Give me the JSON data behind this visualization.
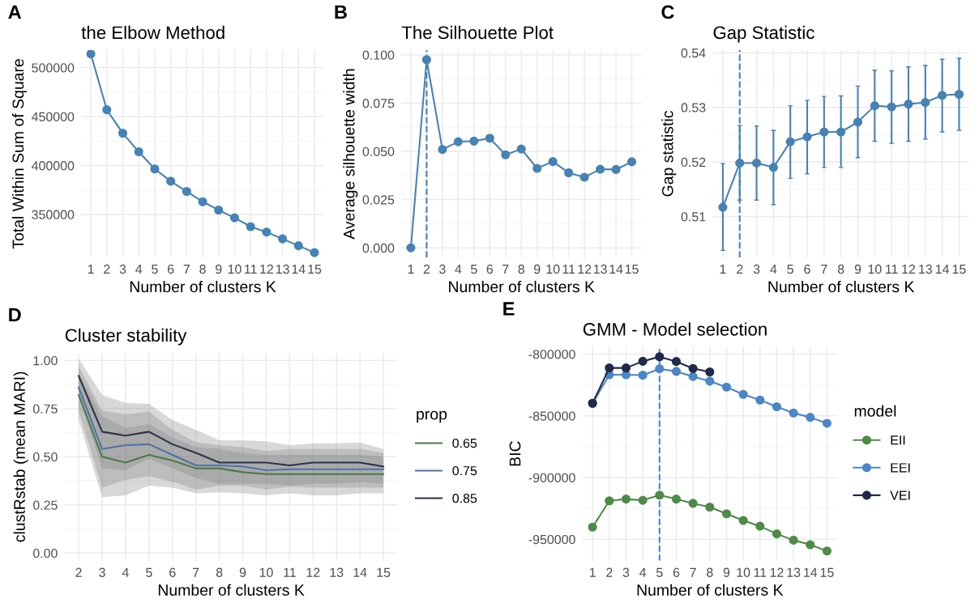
{
  "chart_data": [
    {
      "type": "line",
      "title": "the Elbow Method",
      "xlabel": "Number of clusters K",
      "ylabel": "Total Within Sum of Square",
      "annotations": [
        "A"
      ],
      "categories": [
        "1",
        "2",
        "3",
        "4",
        "5",
        "6",
        "7",
        "8",
        "9",
        "10",
        "11",
        "12",
        "13",
        "14",
        "15"
      ],
      "series": [
        {
          "color": "#4682b4",
          "values": [
            514000,
            457000,
            433000,
            414000,
            396500,
            384000,
            373500,
            363000,
            354500,
            346500,
            337500,
            332000,
            325000,
            318000,
            311000
          ]
        }
      ],
      "ylim": [
        306000,
        518000
      ],
      "yticks": [
        350000,
        400000,
        450000,
        500000
      ],
      "grid": true,
      "marker": "circle",
      "line_style": "solid"
    },
    {
      "type": "line",
      "title": "The Silhouette Plot",
      "xlabel": "Number of clusters K",
      "ylabel": "Average silhouette width",
      "annotations": [
        "B"
      ],
      "categories": [
        "1",
        "2",
        "3",
        "4",
        "5",
        "6",
        "7",
        "8",
        "9",
        "10",
        "11",
        "12",
        "13",
        "14",
        "15"
      ],
      "series": [
        {
          "color": "#4682b4",
          "values": [
            0,
            0.0975,
            0.051,
            0.055,
            0.0553,
            0.0568,
            0.0482,
            0.0512,
            0.0412,
            0.0447,
            0.0389,
            0.0366,
            0.0407,
            0.0406,
            0.0446
          ]
        }
      ],
      "ylim": [
        -0.005,
        0.1025
      ],
      "yticks": [
        {
          "value": 0,
          "label": "0.000"
        },
        {
          "value": 0.025,
          "label": "0.025"
        },
        {
          "value": 0.05,
          "label": "0.050"
        },
        {
          "value": 0.075,
          "label": "0.075"
        },
        {
          "value": 0.1,
          "label": "0.100"
        }
      ],
      "ref_lines": [
        {
          "axis": "x",
          "value": "2",
          "color": "#4682b4",
          "line_style": "dashed"
        }
      ],
      "grid": true,
      "marker": "circle",
      "line_style": "solid"
    },
    {
      "type": "line",
      "title": "Gap Statistic",
      "xlabel": "Number of clusters K",
      "ylabel": "Gap statistic",
      "annotations": [
        "C"
      ],
      "categories": [
        "1",
        "2",
        "3",
        "4",
        "5",
        "6",
        "7",
        "8",
        "9",
        "10",
        "11",
        "12",
        "13",
        "14",
        "15"
      ],
      "series": [
        {
          "color": "#4682b4",
          "values": [
            0.5117,
            0.5198,
            0.5198,
            0.519,
            0.5237,
            0.5246,
            0.5255,
            0.5255,
            0.5273,
            0.5303,
            0.5301,
            0.5306,
            0.5309,
            0.5322,
            0.5324
          ],
          "errors": [
            [
              0.5038,
              0.5197
            ],
            [
              0.513,
              0.5267
            ],
            [
              0.513,
              0.5266
            ],
            [
              0.5122,
              0.5258
            ],
            [
              0.517,
              0.5303
            ],
            [
              0.5178,
              0.5313
            ],
            [
              0.519,
              0.532
            ],
            [
              0.519,
              0.5321
            ],
            [
              0.5208,
              0.5339
            ],
            [
              0.5238,
              0.5368
            ],
            [
              0.5234,
              0.5367
            ],
            [
              0.5238,
              0.5374
            ],
            [
              0.5242,
              0.5377
            ],
            [
              0.5255,
              0.5388
            ],
            [
              0.5258,
              0.539
            ]
          ]
        }
      ],
      "ylim": [
        0.5025,
        0.5405
      ],
      "yticks": [
        0.51,
        0.52,
        0.53,
        0.54
      ],
      "ref_lines": [
        {
          "axis": "x",
          "value": "2",
          "color": "#4682b4",
          "line_style": "dashed"
        }
      ],
      "grid": true,
      "marker": "circle",
      "line_style": "solid"
    },
    {
      "type": "line",
      "title": "Cluster stability",
      "xlabel": "Number of clusters K",
      "ylabel": "clustRstab (mean MARI)",
      "annotations": [
        "D"
      ],
      "legend_title": "prop",
      "categories": [
        "2",
        "3",
        "4",
        "5",
        "6",
        "7",
        "8",
        "9",
        "10",
        "11",
        "12",
        "13",
        "14",
        "15"
      ],
      "series": [
        {
          "name": "0.65",
          "color": "#4a7a47",
          "values": [
            0.82,
            0.5,
            0.47,
            0.51,
            0.48,
            0.44,
            0.44,
            0.42,
            0.41,
            0.41,
            0.41,
            0.41,
            0.41,
            0.41
          ],
          "lower": [
            0.69,
            0.29,
            0.3,
            0.35,
            0.34,
            0.31,
            0.315,
            0.31,
            0.3,
            0.31,
            0.3,
            0.3,
            0.31,
            0.31
          ],
          "upper": [
            0.93,
            0.71,
            0.65,
            0.67,
            0.6,
            0.55,
            0.54,
            0.52,
            0.51,
            0.51,
            0.51,
            0.51,
            0.51,
            0.5
          ]
        },
        {
          "name": "0.75",
          "color": "#4a74a8",
          "values": [
            0.86,
            0.54,
            0.56,
            0.565,
            0.51,
            0.455,
            0.455,
            0.45,
            0.43,
            0.435,
            0.435,
            0.435,
            0.435,
            0.435
          ],
          "lower": [
            0.74,
            0.34,
            0.38,
            0.4,
            0.37,
            0.33,
            0.35,
            0.35,
            0.33,
            0.345,
            0.34,
            0.34,
            0.34,
            0.34
          ],
          "upper": [
            0.97,
            0.74,
            0.72,
            0.735,
            0.64,
            0.575,
            0.56,
            0.55,
            0.53,
            0.54,
            0.54,
            0.54,
            0.54,
            0.52
          ]
        },
        {
          "name": "0.85",
          "color": "#2b3249",
          "values": [
            0.92,
            0.63,
            0.61,
            0.63,
            0.565,
            0.52,
            0.47,
            0.47,
            0.47,
            0.455,
            0.47,
            0.47,
            0.47,
            0.45
          ],
          "lower": [
            0.82,
            0.44,
            0.43,
            0.49,
            0.44,
            0.39,
            0.36,
            0.36,
            0.36,
            0.35,
            0.36,
            0.36,
            0.37,
            0.36
          ],
          "upper": [
            1.01,
            0.82,
            0.78,
            0.775,
            0.69,
            0.64,
            0.585,
            0.585,
            0.58,
            0.56,
            0.57,
            0.57,
            0.575,
            0.54
          ]
        }
      ],
      "ylim": [
        -0.04,
        1.04
      ],
      "yticks": [
        {
          "value": 0,
          "label": "0.00"
        },
        {
          "value": 0.25,
          "label": "0.25"
        },
        {
          "value": 0.5,
          "label": "0.50"
        },
        {
          "value": 0.75,
          "label": "0.75"
        },
        {
          "value": 1,
          "label": "1.00"
        }
      ],
      "grid": true,
      "legend": "right",
      "marker": "none",
      "line_style": "solid"
    },
    {
      "type": "line",
      "title": "GMM - Model selection",
      "xlabel": "Number of clusters K",
      "ylabel": "BIC",
      "annotations": [
        "E"
      ],
      "legend_title": "model",
      "categories": [
        "1",
        "2",
        "3",
        "4",
        "5",
        "6",
        "7",
        "8",
        "9",
        "10",
        "11",
        "12",
        "13",
        "14",
        "15"
      ],
      "series": [
        {
          "name": "EII",
          "color": "#4e8a48",
          "values": [
            -940100,
            -918800,
            -917400,
            -918400,
            -914200,
            -917400,
            -920900,
            -923900,
            -929300,
            -934700,
            -939400,
            -945600,
            -950700,
            -954400,
            -959500
          ]
        },
        {
          "name": "EEI",
          "color": "#4a86c8",
          "values": [
            -839800,
            -816700,
            -816700,
            -817000,
            -811900,
            -814000,
            -818100,
            -821900,
            -826700,
            -832600,
            -837200,
            -842600,
            -847700,
            -851200,
            -856000
          ]
        },
        {
          "name": "VEI",
          "color": "#1f2a4a",
          "values": [
            -839800,
            -811200,
            -811200,
            -805800,
            -802100,
            -806000,
            -811600,
            -814400,
            null,
            null,
            null,
            null,
            null,
            null,
            null
          ]
        }
      ],
      "ylim": [
        -967400,
        -794000
      ],
      "yticks": [
        -950000,
        -900000,
        -850000,
        -800000
      ],
      "ref_lines": [
        {
          "axis": "x",
          "value": "5",
          "color": "#4a86c8",
          "line_style": "dashed"
        }
      ],
      "grid": true,
      "legend": "right",
      "marker": "circle",
      "line_style": "solid"
    }
  ]
}
